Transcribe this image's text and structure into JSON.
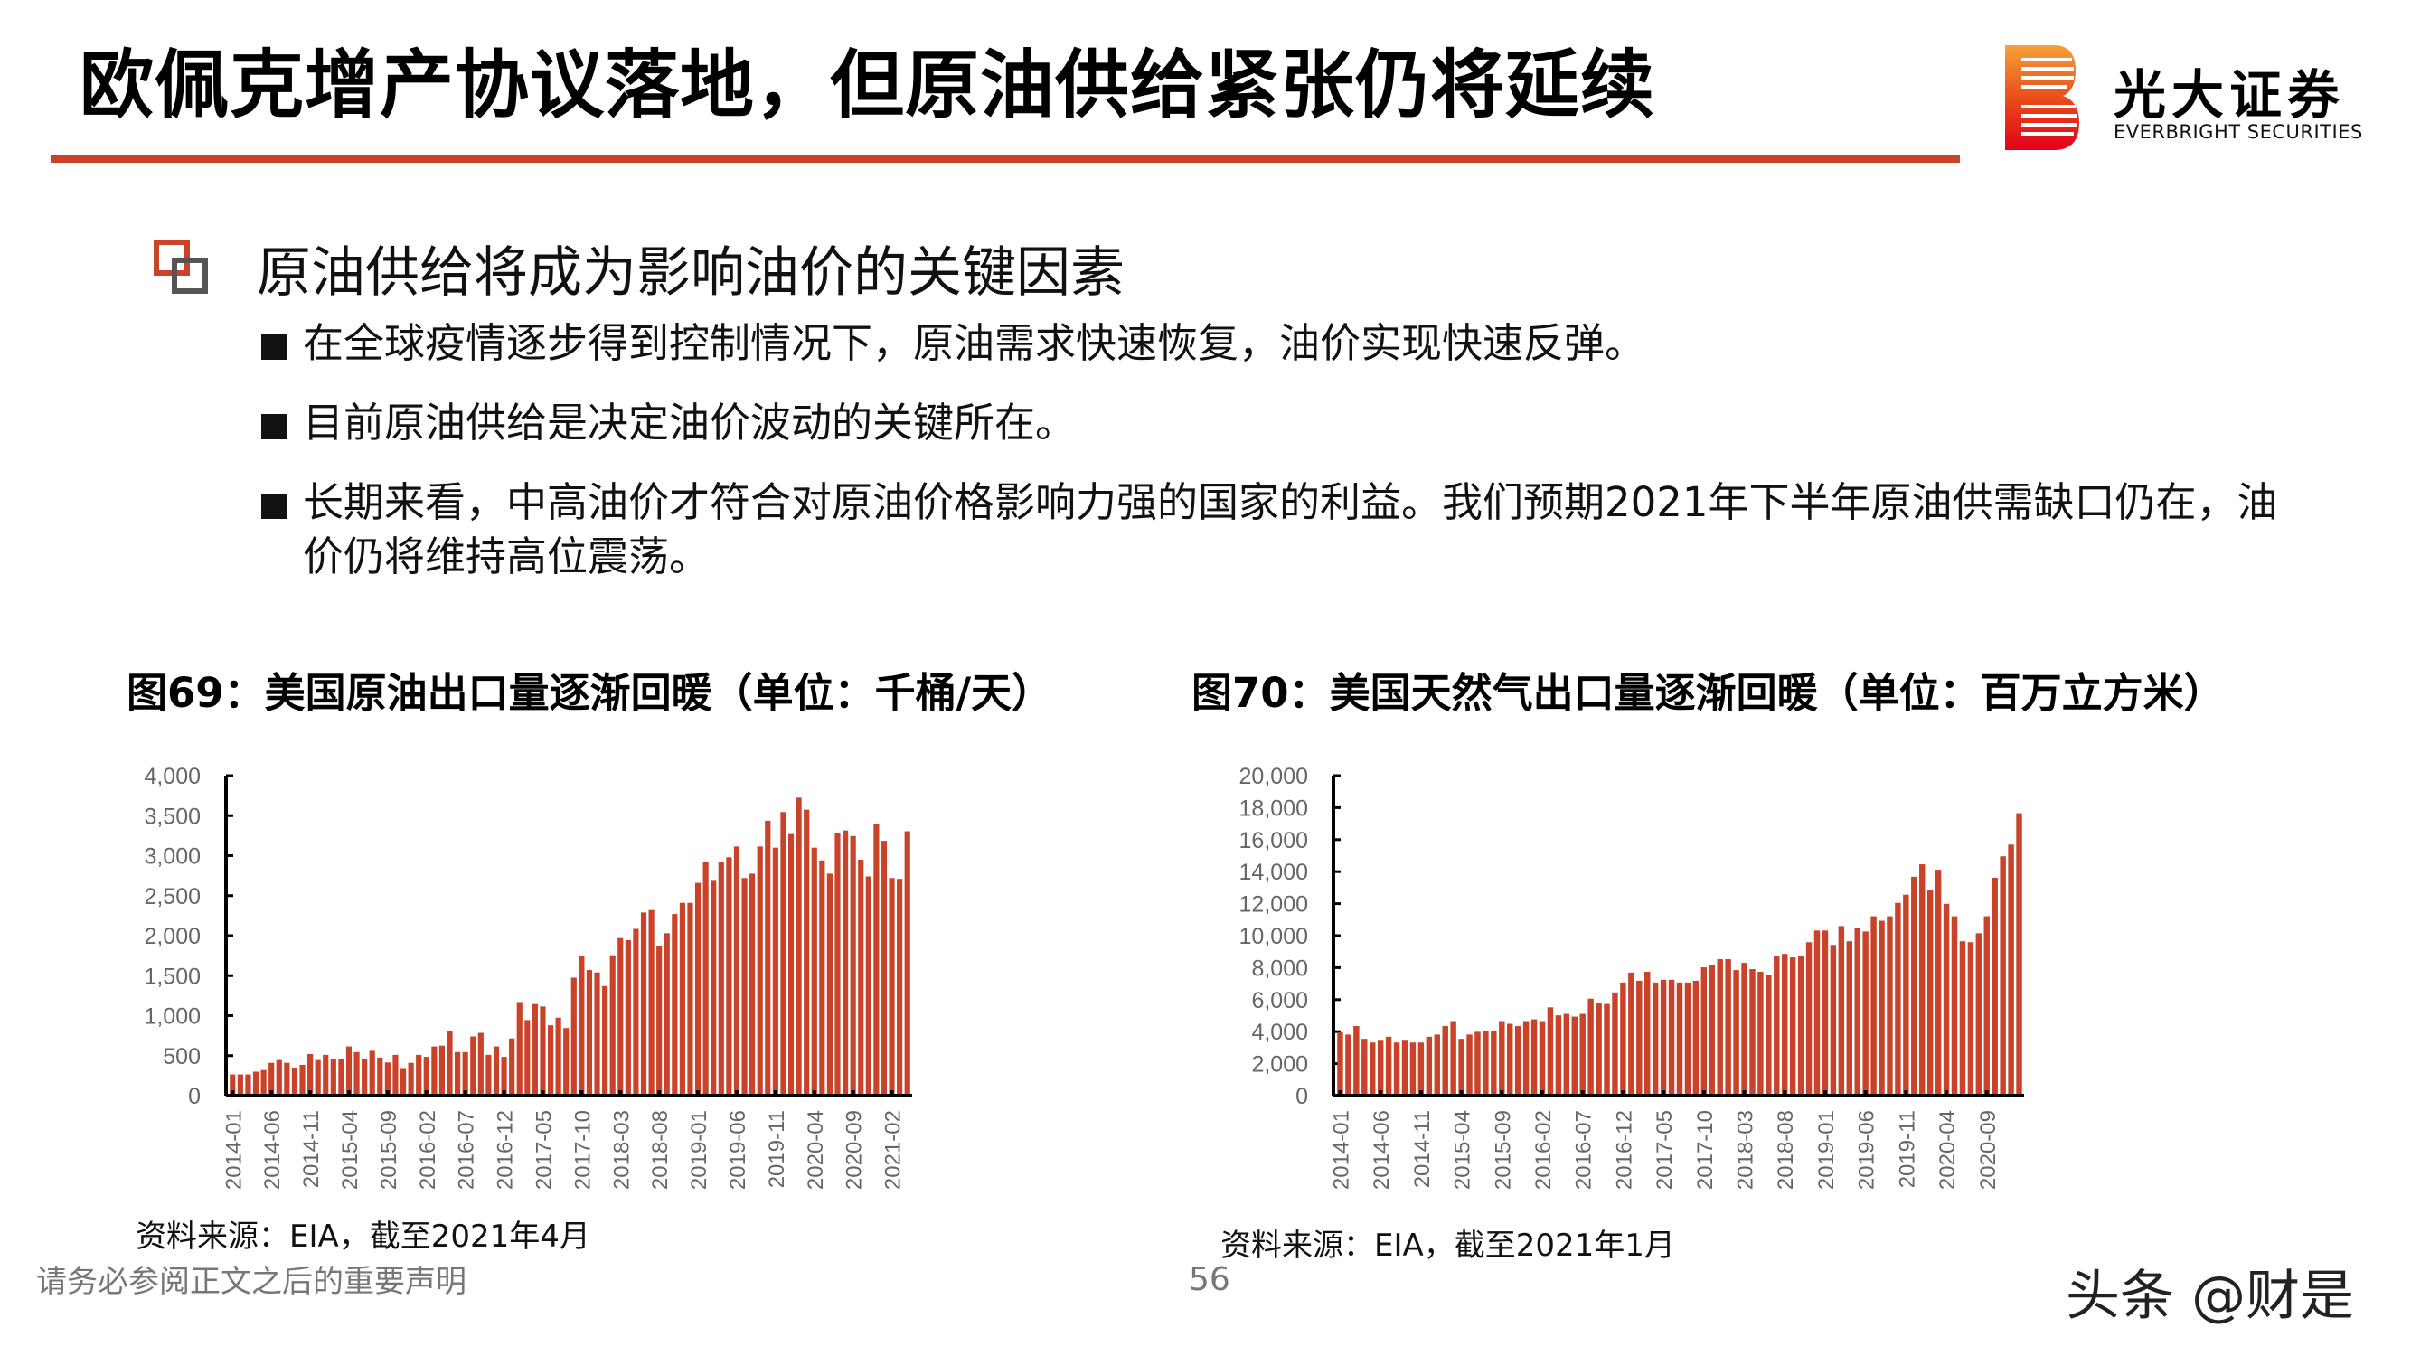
{
  "header": {
    "title": "欧佩克增产协议落地，但原油供给紧张仍将延续",
    "logo": {
      "cn": "光大证券",
      "en": "EVERBRIGHT SECURITIES",
      "colors": {
        "top": "#f4a23a",
        "bottom": "#e3001b"
      }
    }
  },
  "colors": {
    "accent": "#c9432a",
    "icon_gray": "#555555",
    "bar": "#c9432a"
  },
  "section": {
    "icon": "overlapping-squares-icon",
    "title": "原油供给将成为影响油价的关键因素",
    "bullets": [
      "在全球疫情逐步得到控制情况下，原油需求快速恢复，油价实现快速反弹。",
      "目前原油供给是决定油价波动的关键所在。",
      "长期来看，中高油价才符合对原油价格影响力强的国家的利益。我们预期2021年下半年原油供需缺口仍在，油价仍将维持高位震荡。"
    ]
  },
  "figures": [
    {
      "title": "图69：美国原油出口量逐渐回暖（单位：千桶/天）",
      "source": "资料来源：EIA，截至2021年4月"
    },
    {
      "title": "图70：美国天然气出口量逐渐回暖（单位：百万立方米）",
      "source": "资料来源：EIA，截至2021年1月"
    }
  ],
  "footer": {
    "disclaimer": "请务必参阅正文之后的重要声明",
    "page_number": "56",
    "watermark": "头条 @财是"
  },
  "chart_data": [
    {
      "type": "bar",
      "title": "图69：美国原油出口量逐渐回暖（单位：千桶/天）",
      "xlabel": "",
      "ylabel": "千桶/天",
      "ylim": [
        0,
        4000
      ],
      "yticks": [
        0,
        500,
        1000,
        1500,
        2000,
        2500,
        3000,
        3500,
        4000
      ],
      "ytick_labels": [
        "0",
        "500",
        "1,000",
        "1,500",
        "2,000",
        "2,500",
        "3,000",
        "3,500",
        "4,000"
      ],
      "x_start": "2014-01",
      "x_end": "2021-04",
      "xtick_labels": [
        "2014-01",
        "2014-06",
        "2014-11",
        "2015-04",
        "2015-09",
        "2016-02",
        "2016-07",
        "2016-12",
        "2017-05",
        "2017-10",
        "2018-03",
        "2018-08",
        "2019-01",
        "2019-06",
        "2019-11",
        "2020-04",
        "2020-09",
        "2021-02"
      ],
      "grid": false,
      "legend": null,
      "values": [
        265,
        265,
        265,
        300,
        320,
        410,
        445,
        410,
        350,
        385,
        520,
        445,
        510,
        455,
        455,
        615,
        545,
        455,
        560,
        475,
        415,
        510,
        345,
        410,
        510,
        485,
        615,
        625,
        805,
        545,
        545,
        740,
        785,
        510,
        615,
        485,
        715,
        1170,
        945,
        1145,
        1115,
        880,
        975,
        845,
        1475,
        1740,
        1570,
        1540,
        1370,
        1755,
        1970,
        1945,
        2085,
        2290,
        2320,
        1870,
        2030,
        2270,
        2410,
        2410,
        2660,
        2920,
        2685,
        2920,
        2980,
        3115,
        2720,
        2775,
        3115,
        3435,
        3100,
        3545,
        3270,
        3725,
        3575,
        3100,
        2940,
        2775,
        3280,
        3315,
        3245,
        2950,
        2740,
        3395,
        3185,
        2720,
        2710,
        3305
      ]
    },
    {
      "type": "bar",
      "title": "图70：美国天然气出口量逐渐回暖（单位：百万立方米）",
      "xlabel": "",
      "ylabel": "百万立方米",
      "ylim": [
        0,
        20000
      ],
      "yticks": [
        0,
        2000,
        4000,
        6000,
        8000,
        10000,
        12000,
        14000,
        16000,
        18000,
        20000
      ],
      "ytick_labels": [
        "0",
        "2,000",
        "4,000",
        "6,000",
        "8,000",
        "10,000",
        "12,000",
        "14,000",
        "16,000",
        "18,000",
        "20,000"
      ],
      "x_start": "2014-01",
      "x_end": "2021-01",
      "xtick_labels": [
        "2014-01",
        "2014-06",
        "2014-11",
        "2015-04",
        "2015-09",
        "2016-02",
        "2016-07",
        "2016-12",
        "2017-05",
        "2017-10",
        "2018-03",
        "2018-08",
        "2019-01",
        "2019-06",
        "2019-11",
        "2020-04",
        "2020-09"
      ],
      "grid": false,
      "legend": null,
      "values": [
        3950,
        3820,
        4350,
        3550,
        3320,
        3490,
        3680,
        3320,
        3490,
        3320,
        3320,
        3680,
        3820,
        4350,
        4660,
        3550,
        3820,
        3990,
        4050,
        4050,
        4660,
        4490,
        4350,
        4660,
        4770,
        4660,
        5520,
        5020,
        5110,
        4940,
        5110,
        6060,
        5780,
        5730,
        6450,
        7070,
        7690,
        7180,
        7740,
        7070,
        7240,
        7240,
        7070,
        7070,
        7180,
        8020,
        8190,
        8530,
        8530,
        7850,
        8300,
        7910,
        7740,
        7520,
        8700,
        8860,
        8640,
        8700,
        9590,
        10320,
        10320,
        9420,
        10600,
        9650,
        10490,
        10260,
        11210,
        10930,
        11210,
        12050,
        12560,
        13680,
        14460,
        12840,
        14120,
        11990,
        11210,
        9650,
        9590,
        10150,
        11210,
        13620,
        14960,
        15690,
        17650
      ]
    }
  ]
}
